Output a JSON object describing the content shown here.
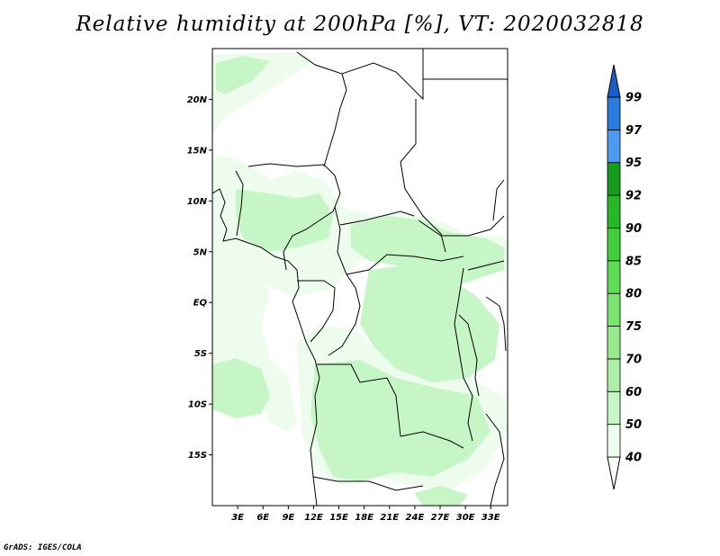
{
  "title": "Relative humidity at 200hPa [%], VT: 2020032818",
  "credit": "GrADS: IGES/COLA",
  "map": {
    "lon_range": [
      0,
      35
    ],
    "lat_range": [
      -20,
      25
    ],
    "lat_ticks": [
      {
        "value": 20,
        "label": "20N"
      },
      {
        "value": 15,
        "label": "15N"
      },
      {
        "value": 10,
        "label": "10N"
      },
      {
        "value": 5,
        "label": "5N"
      },
      {
        "value": 0,
        "label": "EQ"
      },
      {
        "value": -5,
        "label": "5S"
      },
      {
        "value": -10,
        "label": "10S"
      },
      {
        "value": -15,
        "label": "15S"
      }
    ],
    "lon_ticks": [
      {
        "value": 3,
        "label": "3E"
      },
      {
        "value": 6,
        "label": "6E"
      },
      {
        "value": 9,
        "label": "9E"
      },
      {
        "value": 12,
        "label": "12E"
      },
      {
        "value": 15,
        "label": "15E"
      },
      {
        "value": 18,
        "label": "18E"
      },
      {
        "value": 21,
        "label": "21E"
      },
      {
        "value": 24,
        "label": "24E"
      },
      {
        "value": 27,
        "label": "27E"
      },
      {
        "value": 30,
        "label": "30E"
      },
      {
        "value": 33,
        "label": "33E"
      }
    ],
    "shade_colors": {
      "level_40_50": "#edfced",
      "level_50_60": "#c6f5c6"
    }
  },
  "colorbar": {
    "levels": [
      "40",
      "50",
      "60",
      "70",
      "75",
      "80",
      "85",
      "90",
      "92",
      "95",
      "97",
      "99"
    ],
    "colors": [
      "#edfced",
      "#c6f5c6",
      "#aeefa8",
      "#96ea8c",
      "#7ae56f",
      "#5edc54",
      "#3fcf3a",
      "#27b82a",
      "#169c1c",
      "#4c9af0",
      "#2c7be0",
      "#1a5fc8"
    ]
  }
}
